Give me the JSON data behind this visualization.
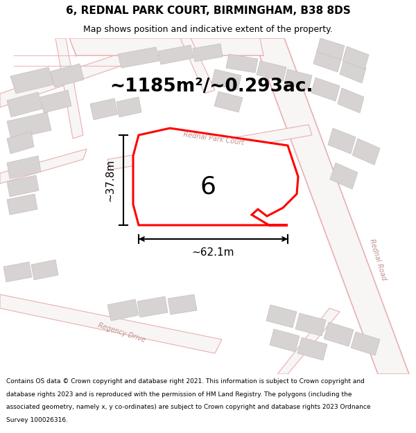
{
  "title": "6, REDNAL PARK COURT, BIRMINGHAM, B38 8DS",
  "subtitle": "Map shows position and indicative extent of the property.",
  "area_text": "~1185m²/~0.293ac.",
  "label_number": "6",
  "dim_width": "~62.1m",
  "dim_height": "~37.8m",
  "road_label_court": "Rednal Park Court",
  "road_label_rednal": "Rednal Road",
  "road_label_regency": "Regency Drive",
  "footer_text": "Contains OS data © Crown copyright and database right 2021. This information is subject to Crown copyright and database rights 2023 and is reproduced with the permission of HM Land Registry. The polygons (including the associated geometry, namely x, y co-ordinates) are subject to Crown copyright and database rights 2023 Ordnance Survey 100026316.",
  "bg_color": "#f5f0f0",
  "map_bg": "#f8f5f5",
  "bld_fill": "#d8d3d3",
  "bld_edge": "#c5bfbf",
  "road_fill": "#f8f5f5",
  "road_edge": "#e8b0b0",
  "road_center": "#e8c0c0",
  "prop_fill": "#ffffff",
  "prop_edge": "#ff0000",
  "fig_width": 6.0,
  "fig_height": 6.25,
  "dpi": 100,
  "title_fs": 11,
  "subtitle_fs": 9,
  "area_fs": 19,
  "number_fs": 26,
  "dim_fs": 11,
  "road_fs": 7,
  "footer_fs": 6.5
}
